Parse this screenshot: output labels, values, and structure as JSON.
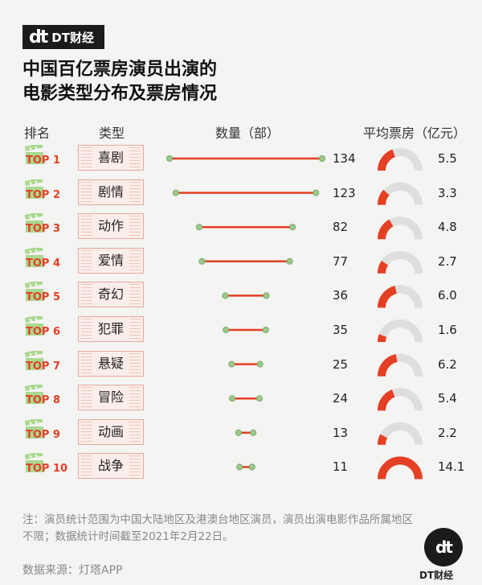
{
  "brand": {
    "mark": "dt",
    "name": "DT财经"
  },
  "title_lines": [
    "中国百亿票房演员出演的",
    "电影类型分布及票房情况"
  ],
  "headers": {
    "rank": "排名",
    "type": "类型",
    "count": "数量（部）",
    "box": "平均票房（亿元）"
  },
  "chart_data": {
    "type": "bar",
    "title": "中国百亿票房演员出演的电影类型分布及票房情况",
    "categories": [
      "喜剧",
      "剧情",
      "动作",
      "爱情",
      "奇幻",
      "犯罪",
      "悬疑",
      "冒险",
      "动画",
      "战争"
    ],
    "ranks": [
      "TOP 1",
      "TOP 2",
      "TOP 3",
      "TOP 4",
      "TOP 5",
      "TOP 6",
      "TOP 7",
      "TOP 8",
      "TOP 9",
      "TOP 10"
    ],
    "series": [
      {
        "name": "数量（部）",
        "values": [
          134,
          123,
          82,
          77,
          36,
          35,
          25,
          24,
          13,
          11
        ]
      },
      {
        "name": "平均票房（亿元）",
        "values": [
          5.5,
          3.3,
          4.8,
          2.7,
          6.0,
          1.6,
          6.2,
          5.4,
          2.2,
          14.1
        ]
      }
    ],
    "box_labels": [
      "5.5",
      "3.3",
      "4.8",
      "2.7",
      "6.0",
      "1.6",
      "6.2",
      "5.4",
      "2.2",
      "14.1"
    ],
    "gauge_max": 14.1
  },
  "note": "注：演员统计范围为中国大陆地区及港澳台地区演员，演员出演电影作品所属地区不限；数据统计时间截至2021年2月22日。",
  "source": "数据来源：灯塔APP",
  "footer_logo": {
    "mark": "dt",
    "name": "DT财经"
  },
  "colors": {
    "accent": "#e53f24",
    "dot": "#9bc98a",
    "track": "#dedede"
  }
}
